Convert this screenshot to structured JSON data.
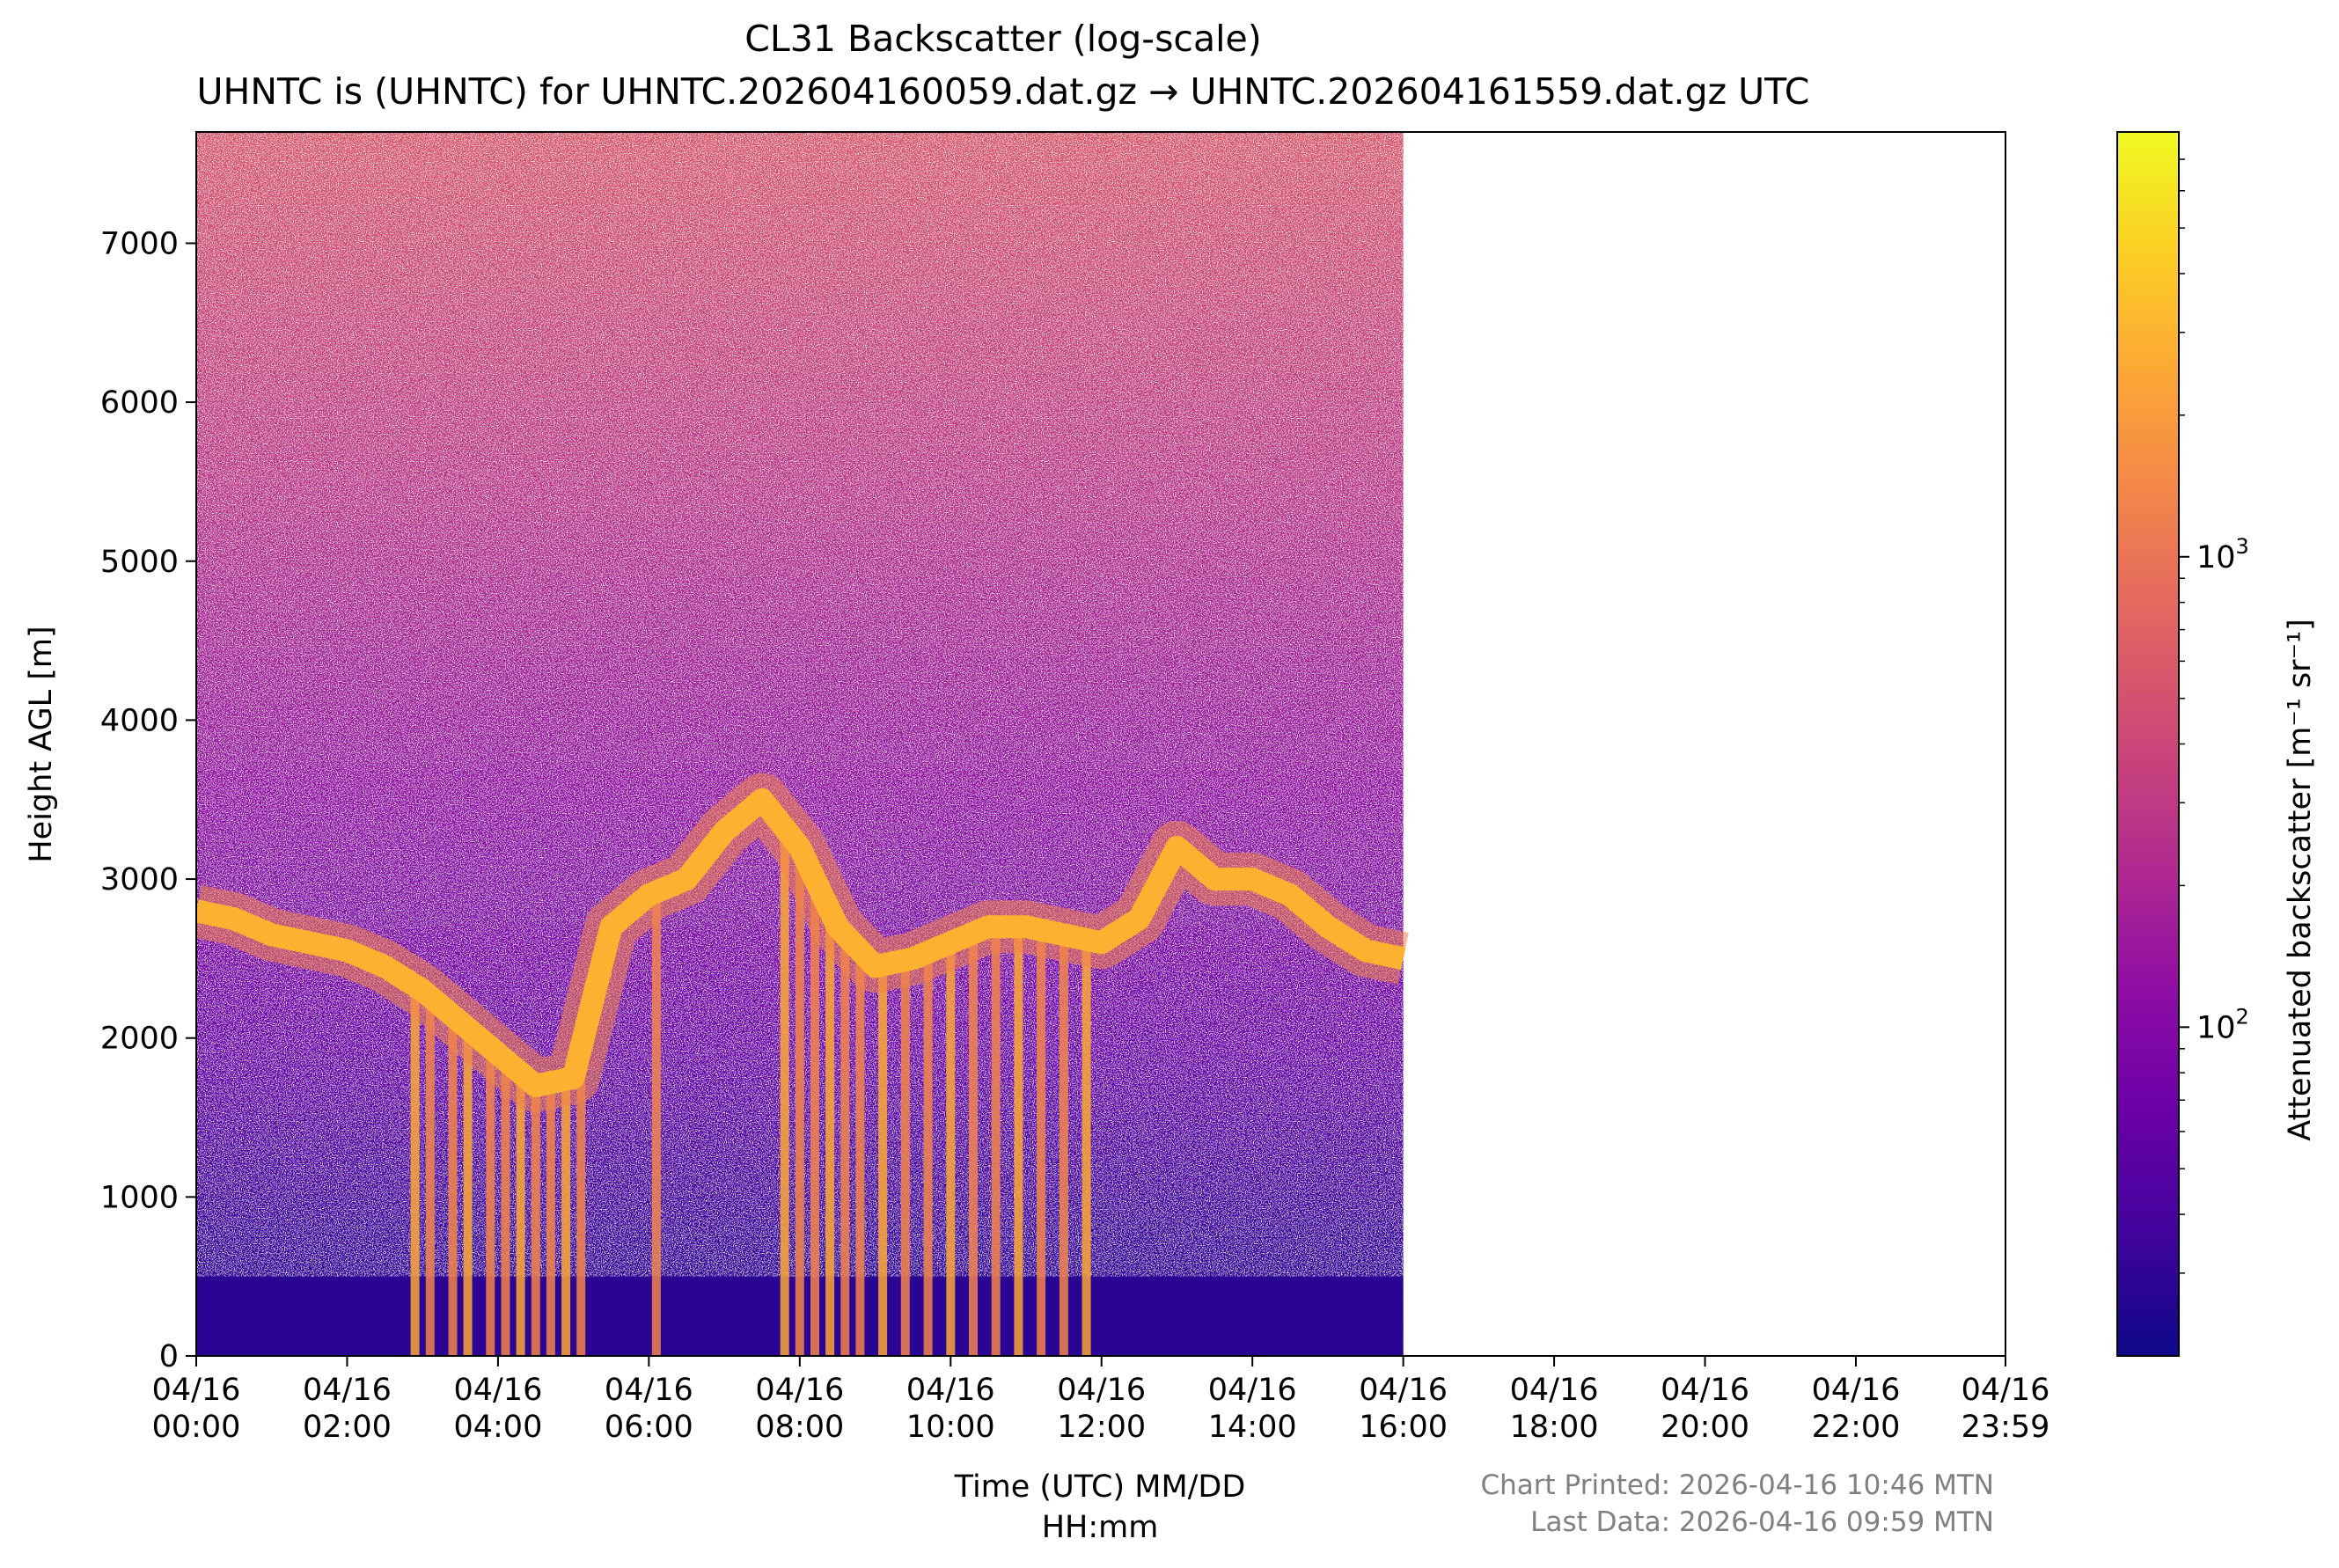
{
  "title": "CL31 Backscatter (log-scale)",
  "subtitle": "UHNTC is (UHNTC) for UHNTC.202604160059.dat.gz → UHNTC.202604161559.dat.gz UTC",
  "footer": {
    "printed": "Chart Printed: 2026-04-16 10:46 MTN",
    "last_data": "Last Data: 2026-04-16 09:59 MTN"
  },
  "colors": {
    "colormap": [
      "#0d0887",
      "#41049d",
      "#6a00a8",
      "#8f0da4",
      "#b12a90",
      "#cc4778",
      "#e16462",
      "#f2844b",
      "#fca636",
      "#fcce25",
      "#f0f921"
    ]
  },
  "chart_data": {
    "type": "heatmap",
    "xlabel_line1": "Time (UTC) MM/DD",
    "xlabel_line2": "HH:mm",
    "ylabel": "Height AGL [m]",
    "colorbar_label": "Attenuated backscatter [m⁻¹ sr⁻¹]",
    "colorbar_scale": "log",
    "colorbar_range": [
      20,
      8000
    ],
    "colorbar_ticks": [
      {
        "value": 100,
        "base": "10",
        "exp": "2"
      },
      {
        "value": 1000,
        "base": "10",
        "exp": "3"
      }
    ],
    "xlim_hours": [
      0,
      23.983
    ],
    "ylim": [
      0,
      7700
    ],
    "data_end_hour": 16,
    "x_ticks": [
      {
        "hour": 0,
        "line1": "04/16",
        "line2": "00:00"
      },
      {
        "hour": 2,
        "line1": "04/16",
        "line2": "02:00"
      },
      {
        "hour": 4,
        "line1": "04/16",
        "line2": "04:00"
      },
      {
        "hour": 6,
        "line1": "04/16",
        "line2": "06:00"
      },
      {
        "hour": 8,
        "line1": "04/16",
        "line2": "08:00"
      },
      {
        "hour": 10,
        "line1": "04/16",
        "line2": "10:00"
      },
      {
        "hour": 12,
        "line1": "04/16",
        "line2": "12:00"
      },
      {
        "hour": 14,
        "line1": "04/16",
        "line2": "14:00"
      },
      {
        "hour": 16,
        "line1": "04/16",
        "line2": "16:00"
      },
      {
        "hour": 18,
        "line1": "04/16",
        "line2": "18:00"
      },
      {
        "hour": 20,
        "line1": "04/16",
        "line2": "20:00"
      },
      {
        "hour": 22,
        "line1": "04/16",
        "line2": "22:00"
      },
      {
        "hour": 23.983,
        "line1": "04/16",
        "line2": "23:59"
      }
    ],
    "y_ticks": [
      {
        "value": 0,
        "label": "0"
      },
      {
        "value": 1000,
        "label": "1000"
      },
      {
        "value": 2000,
        "label": "2000"
      },
      {
        "value": 3000,
        "label": "3000"
      },
      {
        "value": 4000,
        "label": "4000"
      },
      {
        "value": 5000,
        "label": "5000"
      },
      {
        "value": 6000,
        "label": "6000"
      },
      {
        "value": 7000,
        "label": "7000"
      }
    ],
    "layer_height_m": [
      [
        0.0,
        2800
      ],
      [
        0.5,
        2750
      ],
      [
        1.0,
        2650
      ],
      [
        1.5,
        2600
      ],
      [
        2.0,
        2550
      ],
      [
        2.5,
        2450
      ],
      [
        3.0,
        2300
      ],
      [
        3.5,
        2100
      ],
      [
        4.0,
        1900
      ],
      [
        4.5,
        1700
      ],
      [
        5.0,
        1750
      ],
      [
        5.5,
        2700
      ],
      [
        6.0,
        2900
      ],
      [
        6.5,
        3000
      ],
      [
        7.0,
        3300
      ],
      [
        7.5,
        3500
      ],
      [
        8.0,
        3200
      ],
      [
        8.5,
        2700
      ],
      [
        9.0,
        2450
      ],
      [
        9.5,
        2500
      ],
      [
        10.0,
        2600
      ],
      [
        10.5,
        2700
      ],
      [
        11.0,
        2700
      ],
      [
        11.5,
        2650
      ],
      [
        12.0,
        2600
      ],
      [
        12.5,
        2750
      ],
      [
        13.0,
        3200
      ],
      [
        13.5,
        3000
      ],
      [
        14.0,
        3000
      ],
      [
        14.5,
        2900
      ],
      [
        15.0,
        2700
      ],
      [
        15.5,
        2550
      ],
      [
        16.0,
        2500
      ]
    ]
  }
}
